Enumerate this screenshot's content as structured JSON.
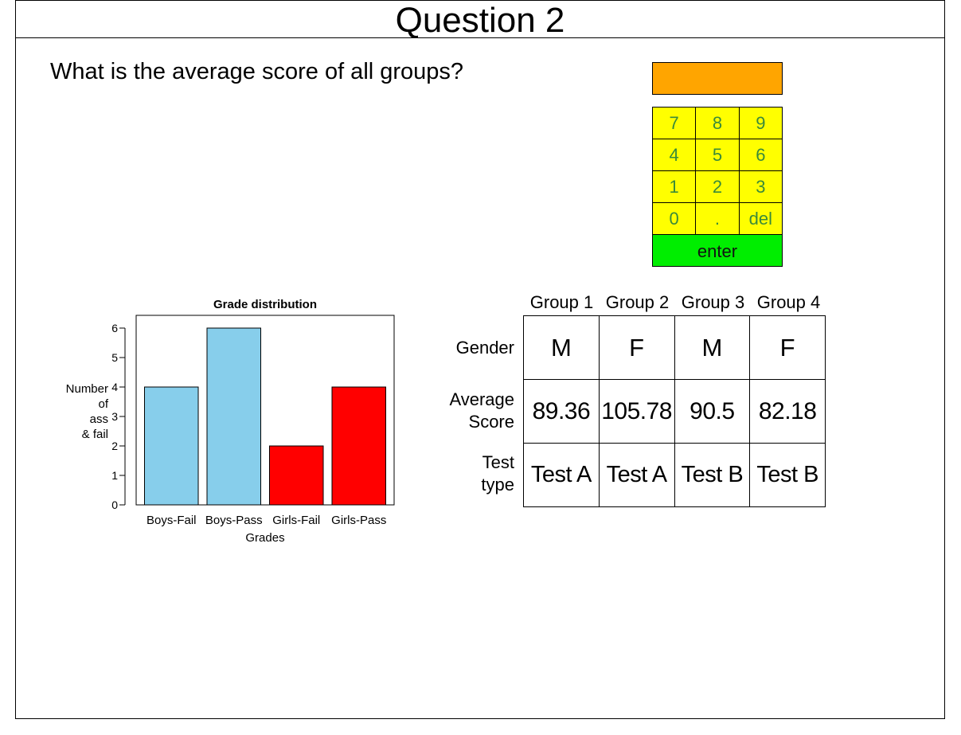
{
  "header": {
    "title": "Question 2"
  },
  "question": {
    "text": "What is the average score of all groups?"
  },
  "answer": {
    "value": "",
    "color": "#ffa500"
  },
  "keypad": {
    "rows": [
      [
        "7",
        "8",
        "9"
      ],
      [
        "4",
        "5",
        "6"
      ],
      [
        "1",
        "2",
        "3"
      ],
      [
        "0",
        ".",
        "del"
      ]
    ],
    "enter_label": "enter",
    "key_color": "#ffff00",
    "enter_color": "#00ee00"
  },
  "chart_data": {
    "type": "bar",
    "title": "Grade distribution",
    "xlabel": "Grades",
    "ylabel_lines": [
      "Number",
      "of",
      "ass",
      "& fail"
    ],
    "categories": [
      "Boys-Fail",
      "Boys-Pass",
      "Girls-Fail",
      "Girls-Pass"
    ],
    "values": [
      4,
      6,
      2,
      4
    ],
    "colors": [
      "#87ceeb",
      "#87ceeb",
      "#ff0000",
      "#ff0000"
    ],
    "ylim": [
      0,
      6
    ],
    "yticks": [
      0,
      1,
      2,
      3,
      4,
      5,
      6
    ],
    "grid": false,
    "legend": "none"
  },
  "table": {
    "groups": [
      "Group 1",
      "Group 2",
      "Group 3",
      "Group 4"
    ],
    "row_labels": {
      "gender": [
        "Gender"
      ],
      "score": [
        "Average",
        "Score"
      ],
      "test": [
        "Test",
        "type"
      ]
    },
    "gender": [
      "M",
      "F",
      "M",
      "F"
    ],
    "score": [
      "89.36",
      "105.78",
      "90.5",
      "82.18"
    ],
    "test": [
      "Test A",
      "Test A",
      "Test B",
      "Test B"
    ]
  }
}
